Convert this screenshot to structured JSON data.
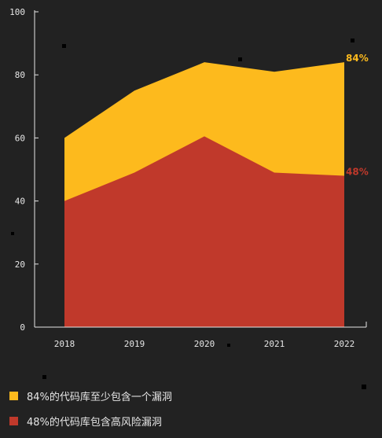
{
  "chart_data": {
    "type": "area",
    "stacked": false,
    "x": [
      "2018",
      "2019",
      "2020",
      "2021",
      "2022"
    ],
    "ylim": [
      0,
      100
    ],
    "yticks": [
      0,
      20,
      40,
      60,
      80,
      100
    ],
    "grid": false,
    "legend_position": "bottom-left",
    "series": [
      {
        "name": "84%的代码库至少包含一个漏洞",
        "values": [
          60,
          75,
          84,
          81,
          84
        ],
        "color": "#FDBA1D",
        "end_label": "84%"
      },
      {
        "name": "48%的代码库包含高风险漏洞",
        "values": [
          40,
          49,
          60.5,
          49,
          48
        ],
        "color": "#C0392B",
        "end_label": "48%"
      }
    ]
  },
  "colors": {
    "background": "#222222",
    "axis": "#e6e6e6",
    "series_1": "#FDBA1D",
    "series_2": "#C0392B"
  }
}
